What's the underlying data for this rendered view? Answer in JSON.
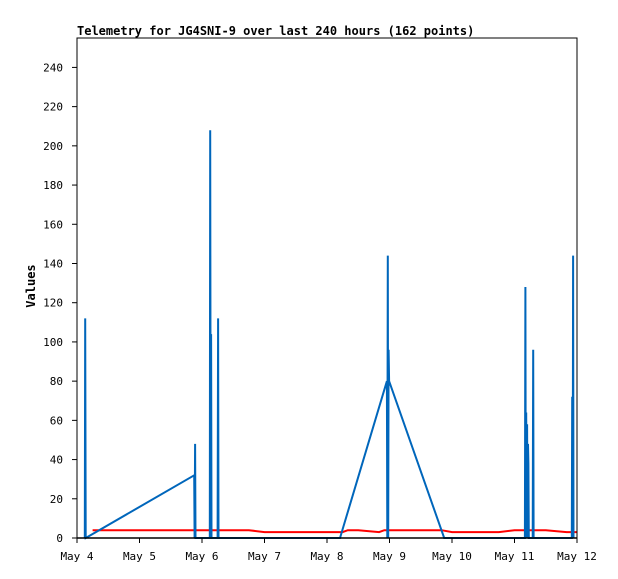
{
  "chart_data": {
    "type": "line",
    "title": "Telemetry for JG4SNI-9 over last 240 hours (162 points)",
    "xlabel": "",
    "ylabel": "Values",
    "xlim": [
      "May 4",
      "May 12"
    ],
    "ylim": [
      0,
      255
    ],
    "x_ticks": [
      "May 4",
      "May 5",
      "May 6",
      "May 7",
      "May 8",
      "May 9",
      "May 10",
      "May 11",
      "May 12"
    ],
    "y_ticks": [
      0,
      20,
      40,
      60,
      80,
      100,
      120,
      140,
      160,
      180,
      200,
      220,
      240
    ],
    "grid": false,
    "legend": "none",
    "series": [
      {
        "color": "#ff0000",
        "points": [
          [
            "May 4 06:00",
            4
          ],
          [
            "May 4 12:00",
            4
          ],
          [
            "May 5 00:00",
            4
          ],
          [
            "May 5 12:00",
            4
          ],
          [
            "May 6 00:00",
            4
          ],
          [
            "May 6 12:00",
            4
          ],
          [
            "May 6 18:00",
            4
          ],
          [
            "May 7 00:00",
            3
          ],
          [
            "May 7 12:00",
            3
          ],
          [
            "May 8 00:00",
            3
          ],
          [
            "May 8 06:00",
            3
          ],
          [
            "May 8 08:00",
            4
          ],
          [
            "May 8 12:00",
            4
          ],
          [
            "May 8 20:00",
            3
          ],
          [
            "May 8 22:00",
            4
          ],
          [
            "May 9 00:00",
            4
          ],
          [
            "May 9 12:00",
            4
          ],
          [
            "May 9 20:00",
            4
          ],
          [
            "May 10 00:00",
            3
          ],
          [
            "May 10 12:00",
            3
          ],
          [
            "May 10 18:00",
            3
          ],
          [
            "May 11 00:00",
            4
          ],
          [
            "May 11 12:00",
            4
          ],
          [
            "May 11 20:00",
            3
          ],
          [
            "May 12 00:00",
            3
          ]
        ]
      },
      {
        "color": "#0066bb",
        "points": [
          [
            "May 4 03:00",
            0
          ],
          [
            "May 4 03:10",
            112
          ],
          [
            "May 4 03:20",
            0
          ],
          [
            "May 5 21:00",
            32
          ],
          [
            "May 5 21:10",
            0
          ],
          [
            "May 5 21:20",
            48
          ],
          [
            "May 5 21:30",
            0
          ],
          [
            "May 6 03:00",
            0
          ],
          [
            "May 6 03:10",
            208
          ],
          [
            "May 6 03:20",
            0
          ],
          [
            "May 6 03:30",
            104
          ],
          [
            "May 6 03:40",
            0
          ],
          [
            "May 6 06:00",
            0
          ],
          [
            "May 6 06:10",
            112
          ],
          [
            "May 6 06:20",
            0
          ],
          [
            "May 8 05:00",
            0
          ],
          [
            "May 8 23:00",
            80
          ],
          [
            "May 8 23:10",
            0
          ],
          [
            "May 8 23:20",
            144
          ],
          [
            "May 8 23:30",
            0
          ],
          [
            "May 8 23:40",
            96
          ],
          [
            "May 8 23:50",
            80
          ],
          [
            "May 9 21:00",
            0
          ],
          [
            "May 11 04:00",
            0
          ],
          [
            "May 11 04:10",
            128
          ],
          [
            "May 11 04:20",
            0
          ],
          [
            "May 11 04:30",
            64
          ],
          [
            "May 11 04:40",
            0
          ],
          [
            "May 11 04:50",
            58
          ],
          [
            "May 11 05:00",
            0
          ],
          [
            "May 11 05:10",
            48
          ],
          [
            "May 11 05:20",
            38
          ],
          [
            "May 11 05:30",
            0
          ],
          [
            "May 11 07:00",
            0
          ],
          [
            "May 11 07:10",
            96
          ],
          [
            "May 11 07:20",
            0
          ],
          [
            "May 11 22:00",
            0
          ],
          [
            "May 11 22:10",
            72
          ],
          [
            "May 11 22:20",
            0
          ],
          [
            "May 11 22:30",
            144
          ],
          [
            "May 11 22:40",
            0
          ]
        ]
      }
    ]
  }
}
